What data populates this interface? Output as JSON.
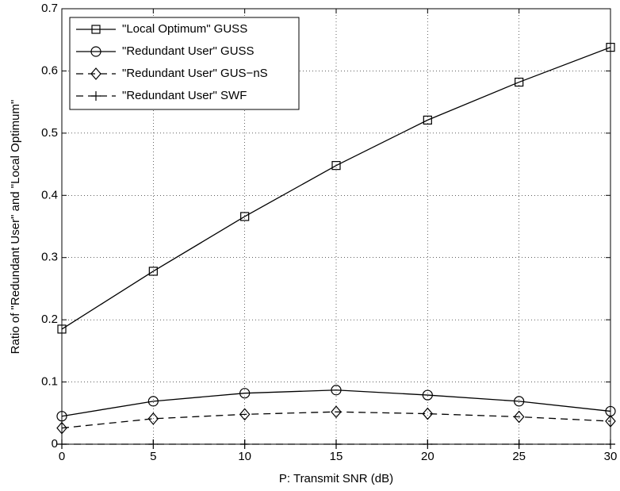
{
  "chart_data": {
    "type": "line",
    "xlabel": "P: Transmit SNR (dB)",
    "ylabel": "Ratio of \"Redundant User\" and \"Local Optimum\"",
    "x": [
      0,
      5,
      10,
      15,
      20,
      25,
      30
    ],
    "series": [
      {
        "name": "\"Local Optimum\" GUSS",
        "color": "#000000",
        "marker": "square",
        "dash": false,
        "values": [
          0.185,
          0.278,
          0.366,
          0.448,
          0.521,
          0.582,
          0.638
        ]
      },
      {
        "name": "\"Redundant User\" GUSS",
        "color": "#000000",
        "marker": "circle",
        "dash": false,
        "values": [
          0.045,
          0.069,
          0.082,
          0.087,
          0.079,
          0.069,
          0.053
        ]
      },
      {
        "name": "\"Redundant User\" GUS−nS",
        "color": "#000000",
        "marker": "diamond",
        "dash": true,
        "values": [
          0.026,
          0.041,
          0.048,
          0.052,
          0.049,
          0.044,
          0.037
        ]
      },
      {
        "name": "\"Redundant User\" SWF",
        "color": "#000000",
        "marker": "plus",
        "dash": true,
        "values": [
          0,
          0,
          0,
          0,
          0,
          0,
          0
        ]
      }
    ],
    "xlim": [
      0,
      30
    ],
    "xticks": [
      0,
      5,
      10,
      15,
      20,
      25,
      30
    ],
    "ylim": [
      0,
      0.7
    ],
    "yticks": [
      0,
      0.1,
      0.2,
      0.3,
      0.4,
      0.5,
      0.6,
      0.7
    ],
    "grid": true,
    "legend": "upper left"
  }
}
